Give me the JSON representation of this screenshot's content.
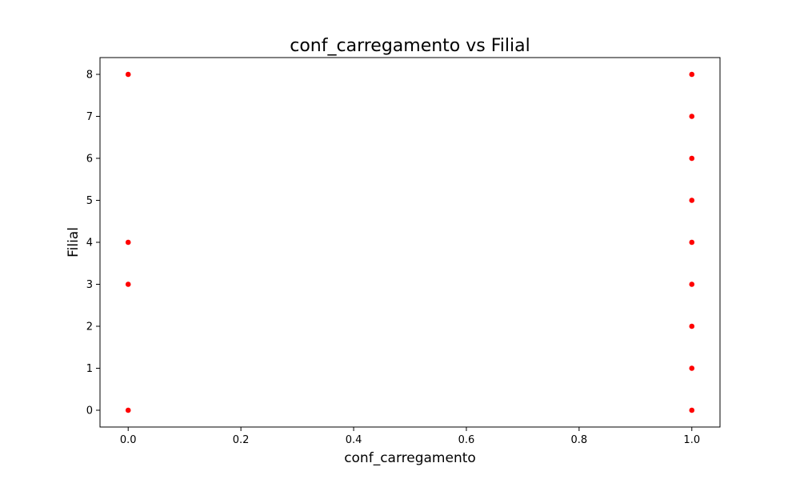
{
  "chart_data": {
    "type": "scatter",
    "title": "conf_carregamento vs Filial",
    "xlabel": "conf_carregamento",
    "ylabel": "Filial",
    "xlim": [
      -0.05,
      1.05
    ],
    "ylim": [
      -0.4,
      8.4
    ],
    "xticks": [
      0.0,
      0.2,
      0.4,
      0.6,
      0.8,
      1.0
    ],
    "xtick_labels": [
      "0.0",
      "0.2",
      "0.4",
      "0.6",
      "0.8",
      "1.0"
    ],
    "yticks": [
      0,
      1,
      2,
      3,
      4,
      5,
      6,
      7,
      8
    ],
    "ytick_labels": [
      "0",
      "1",
      "2",
      "3",
      "4",
      "5",
      "6",
      "7",
      "8"
    ],
    "grid": false,
    "legend": false,
    "marker_color": "#ff0000",
    "points": [
      {
        "x": 0,
        "y": 0
      },
      {
        "x": 0,
        "y": 3
      },
      {
        "x": 0,
        "y": 4
      },
      {
        "x": 0,
        "y": 8
      },
      {
        "x": 1,
        "y": 0
      },
      {
        "x": 1,
        "y": 1
      },
      {
        "x": 1,
        "y": 2
      },
      {
        "x": 1,
        "y": 3
      },
      {
        "x": 1,
        "y": 4
      },
      {
        "x": 1,
        "y": 5
      },
      {
        "x": 1,
        "y": 6
      },
      {
        "x": 1,
        "y": 7
      },
      {
        "x": 1,
        "y": 8
      }
    ]
  }
}
